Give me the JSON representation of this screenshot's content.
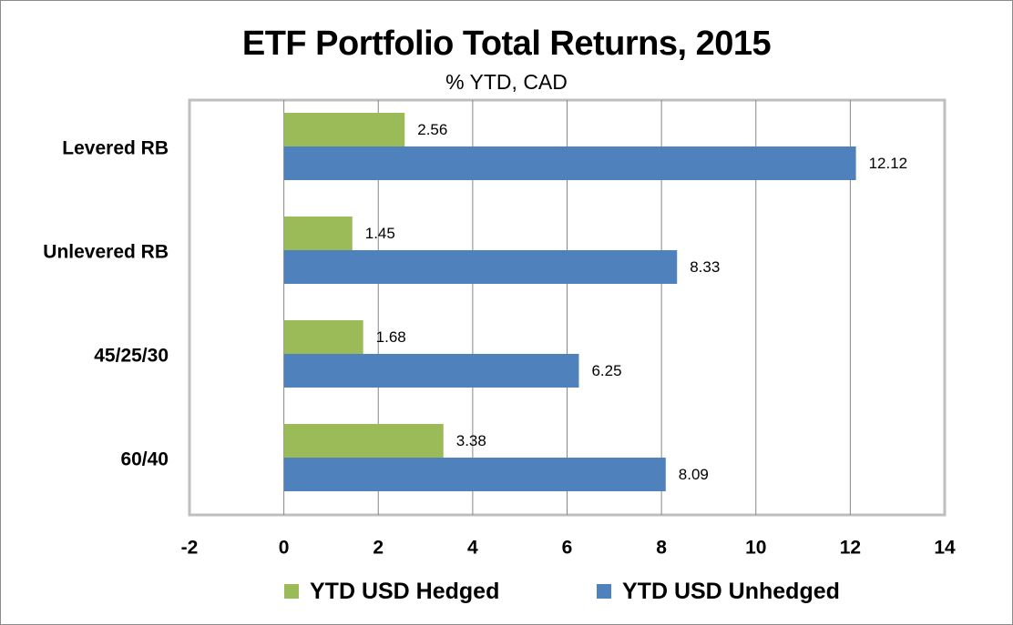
{
  "chart_data": {
    "type": "bar",
    "orientation": "horizontal",
    "title": "ETF Portfolio Total Returns, 2015",
    "subtitle": "% YTD, CAD",
    "categories": [
      "Levered RB",
      "Unlevered RB",
      "45/25/30",
      "60/40"
    ],
    "series": [
      {
        "name": "YTD USD Hedged",
        "color": "#9bbb59",
        "values": [
          2.56,
          1.45,
          1.68,
          3.38
        ],
        "labels": [
          "2.56",
          "1.45",
          "1.68",
          "3.38"
        ]
      },
      {
        "name": "YTD USD Unhedged",
        "color": "#4f81bd",
        "values": [
          12.12,
          8.33,
          6.25,
          8.09
        ],
        "labels": [
          "12.12",
          "8.33",
          "6.25",
          "8.09"
        ]
      }
    ],
    "xlim": [
      -2,
      14
    ],
    "xticks": [
      -2,
      0,
      2,
      4,
      6,
      8,
      10,
      12,
      14
    ],
    "xtick_labels": [
      "-2",
      "0",
      "2",
      "4",
      "6",
      "8",
      "10",
      "12",
      "14"
    ],
    "grid": true,
    "legend_position": "bottom"
  }
}
